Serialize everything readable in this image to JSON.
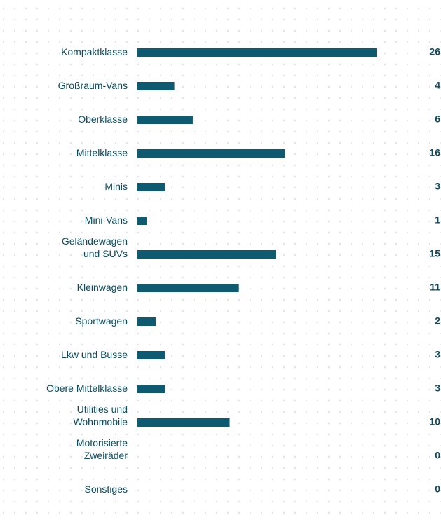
{
  "chart_data": {
    "type": "bar",
    "orientation": "horizontal",
    "color": "#0e5a70",
    "categories": [
      "Kompaktklasse",
      "Großraum-Vans",
      "Oberklasse",
      "Mittelklasse",
      "Minis",
      "Mini-Vans",
      "Geländewagen\nund SUVs",
      "Kleinwagen",
      "Sportwagen",
      "Lkw und Busse",
      "Obere Mittelklasse",
      "Utilities und\nWohnmobile",
      "Motorisierte\nZweiräder",
      "Sonstiges"
    ],
    "values": [
      26,
      4,
      6,
      16,
      3,
      1,
      15,
      11,
      2,
      3,
      3,
      10,
      0,
      0
    ]
  }
}
